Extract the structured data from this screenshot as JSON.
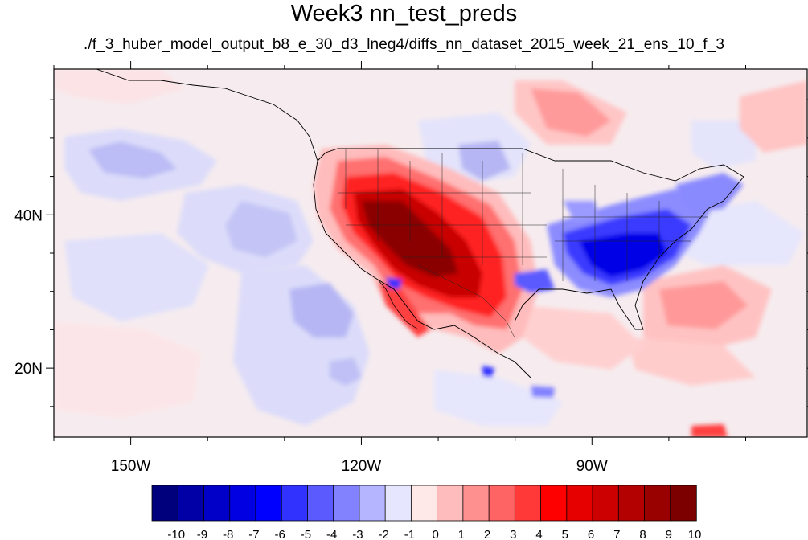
{
  "title": "Week3 nn_test_preds",
  "subtitle": "./f_3_huber_model_output_b8_e_30_d3_lneg4/diffs_nn_dataset_2015_week_21_ens_10_f_3",
  "map": {
    "lon_range": [
      -160,
      -62
    ],
    "lat_range": [
      11,
      59
    ],
    "x_ticks": [
      {
        "label": "150W",
        "lon": -150
      },
      {
        "label": "120W",
        "lon": -120
      },
      {
        "label": "90W",
        "lon": -90
      }
    ],
    "y_ticks": [
      {
        "label": "40N",
        "lat": 40
      },
      {
        "label": "20N",
        "lat": 20
      }
    ]
  },
  "colorbar": {
    "labels": [
      "-10",
      "-9",
      "-8",
      "-7",
      "-6",
      "-5",
      "-4",
      "-3",
      "-2",
      "-1",
      "0",
      "1",
      "2",
      "3",
      "4",
      "5",
      "6",
      "7",
      "8",
      "9",
      "10"
    ],
    "colors": [
      "#00007d",
      "#0000a6",
      "#0000c8",
      "#0000e3",
      "#0000ff",
      "#3232ff",
      "#5a5aff",
      "#8282ff",
      "#b4b4ff",
      "#e6e6ff",
      "#ffe8e8",
      "#ffbcbc",
      "#ff9090",
      "#ff6464",
      "#ff3838",
      "#ff0000",
      "#e60000",
      "#cc0000",
      "#b30000",
      "#990000",
      "#7d0000"
    ]
  }
}
